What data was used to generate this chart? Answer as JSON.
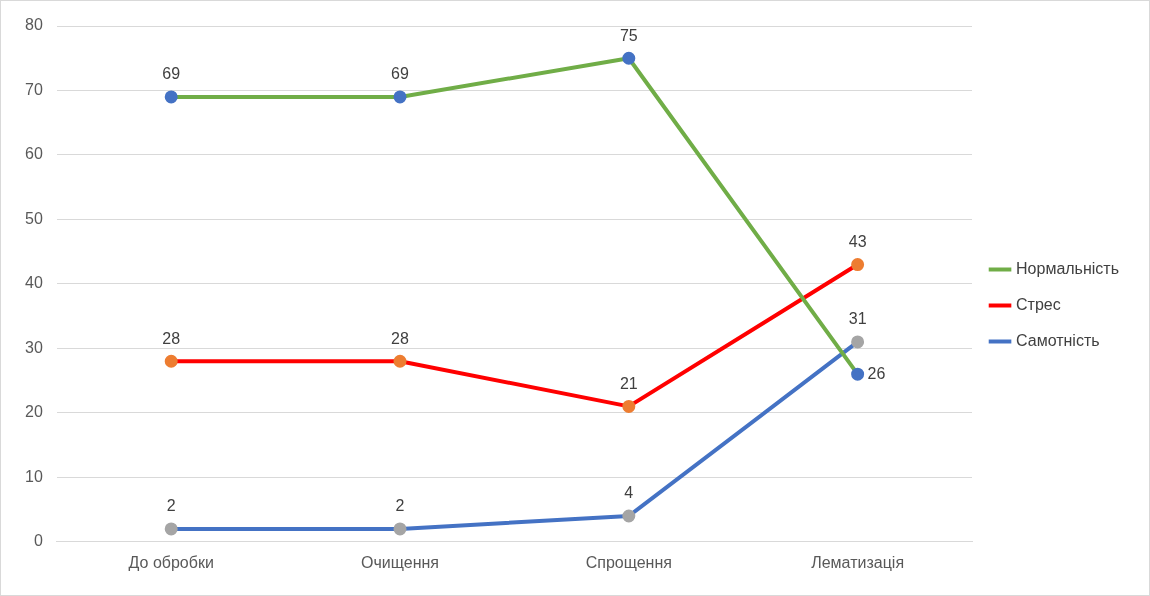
{
  "chart_data": {
    "type": "line",
    "categories": [
      "До обробки",
      "Очищення",
      "Спрощення",
      "Лематизація"
    ],
    "series": [
      {
        "name": "Нормальність",
        "color": "#70ad47",
        "colors": [
          "#4472c4",
          "#4472c4",
          "#4472c4",
          "#4472c4"
        ],
        "values": [
          69,
          69,
          75,
          26
        ]
      },
      {
        "name": "Стрес",
        "color": "#ff0000",
        "colors": [
          "#ed7d31",
          "#ed7d31",
          "#ed7d31",
          "#ed7d31"
        ],
        "values": [
          28,
          28,
          21,
          43
        ]
      },
      {
        "name": "Самотність",
        "color": "#4472c4",
        "colors": [
          "#a5a5a5",
          "#a5a5a5",
          "#a5a5a5",
          "#a5a5a5"
        ],
        "values": [
          2,
          2,
          4,
          31
        ]
      }
    ],
    "ylim": [
      0,
      80
    ],
    "yticks": [
      0,
      10,
      20,
      30,
      40,
      50,
      60,
      70,
      80
    ],
    "grid": "y",
    "legend": "right",
    "marker": "circle",
    "line_style": "solid",
    "data_labels": true
  }
}
